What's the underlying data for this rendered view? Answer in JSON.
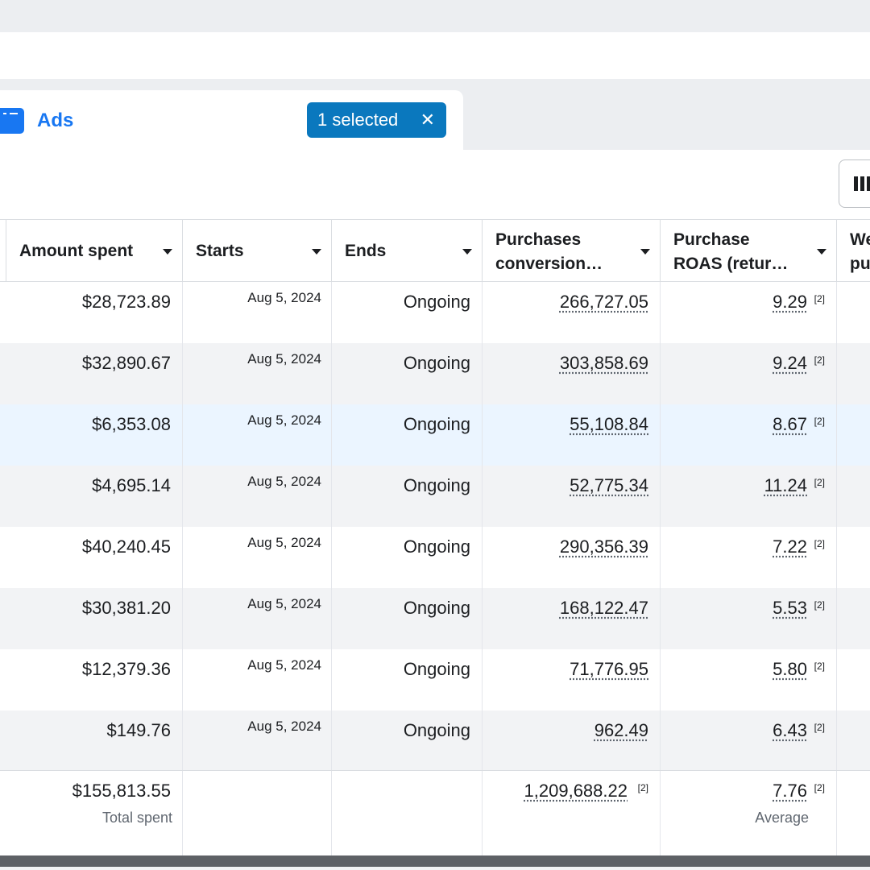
{
  "tabs": {
    "ads_label": "Ads"
  },
  "selection": {
    "label": "1 selected",
    "close_glyph": "✕"
  },
  "toolbar": {
    "columns_icon": "columns-icon"
  },
  "columns": [
    {
      "label": "Amount spent"
    },
    {
      "label": "Starts"
    },
    {
      "label": "Ends"
    },
    {
      "line1": "Purchases",
      "line2": "conversion…"
    },
    {
      "line1": "Purchase",
      "line2": "ROAS (retur…"
    },
    {
      "line1": "We",
      "line2": "pu"
    }
  ],
  "rows": [
    {
      "amount": "$28,723.89",
      "starts": "Aug 5, 2024",
      "ends": "Ongoing",
      "conversion": "266,727.05",
      "roas": "9.29",
      "footnote": "[2]"
    },
    {
      "amount": "$32,890.67",
      "starts": "Aug 5, 2024",
      "ends": "Ongoing",
      "conversion": "303,858.69",
      "roas": "9.24",
      "footnote": "[2]"
    },
    {
      "amount": "$6,353.08",
      "starts": "Aug 5, 2024",
      "ends": "Ongoing",
      "conversion": "55,108.84",
      "roas": "8.67",
      "footnote": "[2]"
    },
    {
      "amount": "$4,695.14",
      "starts": "Aug 5, 2024",
      "ends": "Ongoing",
      "conversion": "52,775.34",
      "roas": "11.24",
      "footnote": "[2]"
    },
    {
      "amount": "$40,240.45",
      "starts": "Aug 5, 2024",
      "ends": "Ongoing",
      "conversion": "290,356.39",
      "roas": "7.22",
      "footnote": "[2]"
    },
    {
      "amount": "$30,381.20",
      "starts": "Aug 5, 2024",
      "ends": "Ongoing",
      "conversion": "168,122.47",
      "roas": "5.53",
      "footnote": "[2]"
    },
    {
      "amount": "$12,379.36",
      "starts": "Aug 5, 2024",
      "ends": "Ongoing",
      "conversion": "71,776.95",
      "roas": "5.80",
      "footnote": "[2]"
    },
    {
      "amount": "$149.76",
      "starts": "Aug 5, 2024",
      "ends": "Ongoing",
      "conversion": "962.49",
      "roas": "6.43",
      "footnote": "[2]"
    }
  ],
  "totals": {
    "amount": "$155,813.55",
    "amount_note": "Total spent",
    "conversion": "1,209,688.22",
    "conversion_footnote": "[2]",
    "roas": "7.76",
    "roas_footnote": "[2]",
    "roas_note": "Average"
  },
  "colors": {
    "accent": "#1877f2",
    "chip": "#0a78be",
    "selected_row": "#ebf5ff",
    "alt_row": "#f2f3f5"
  }
}
